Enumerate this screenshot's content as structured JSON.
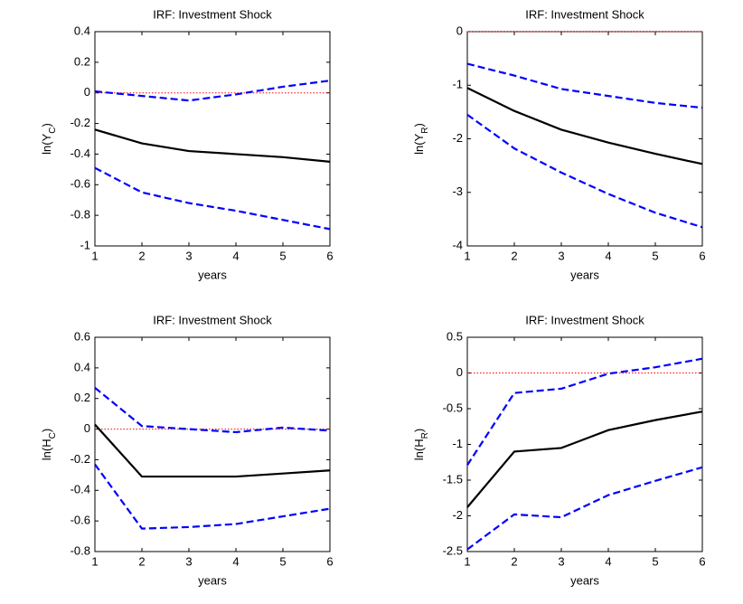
{
  "chart_data": [
    {
      "type": "line",
      "title": "IRF:  Investment Shock",
      "xlabel": "years",
      "ylabel": [
        "ln(Y",
        "C",
        ")"
      ],
      "x": [
        1,
        2,
        3,
        4,
        5,
        6
      ],
      "xlim": [
        1,
        6
      ],
      "xticks": [
        1,
        2,
        3,
        4,
        5,
        6
      ],
      "ylim": [
        -1,
        0.4
      ],
      "yticks": [
        -1,
        -0.8,
        -0.6,
        -0.4,
        -0.2,
        0,
        0.2,
        0.4
      ],
      "hline": 0,
      "hline_color": "#ff0000",
      "series": [
        {
          "color": "#000000",
          "dash": false,
          "values": [
            -0.24,
            -0.33,
            -0.38,
            -0.4,
            -0.42,
            -0.45
          ]
        },
        {
          "color": "#0000ff",
          "dash": true,
          "values": [
            0.01,
            -0.02,
            -0.05,
            -0.01,
            0.04,
            0.08
          ]
        },
        {
          "color": "#0000ff",
          "dash": true,
          "values": [
            -0.49,
            -0.65,
            -0.72,
            -0.77,
            -0.83,
            -0.89
          ]
        }
      ]
    },
    {
      "type": "line",
      "title": "IRF:  Investment Shock",
      "xlabel": "years",
      "ylabel": [
        "ln(Y",
        "R",
        ")"
      ],
      "x": [
        1,
        2,
        3,
        4,
        5,
        6
      ],
      "xlim": [
        1,
        6
      ],
      "xticks": [
        1,
        2,
        3,
        4,
        5,
        6
      ],
      "ylim": [
        -4,
        0
      ],
      "yticks": [
        -4,
        -3,
        -2,
        -1,
        0
      ],
      "hline": 0,
      "hline_color": "#ff0000",
      "series": [
        {
          "color": "#000000",
          "dash": false,
          "values": [
            -1.05,
            -1.48,
            -1.83,
            -2.07,
            -2.28,
            -2.47
          ]
        },
        {
          "color": "#0000ff",
          "dash": true,
          "values": [
            -0.6,
            -0.82,
            -1.07,
            -1.2,
            -1.33,
            -1.42
          ]
        },
        {
          "color": "#0000ff",
          "dash": true,
          "values": [
            -1.55,
            -2.18,
            -2.63,
            -3.03,
            -3.38,
            -3.65
          ]
        }
      ]
    },
    {
      "type": "line",
      "title": "IRF:  Investment Shock",
      "xlabel": "years",
      "ylabel": [
        "ln(H",
        "C",
        ")"
      ],
      "x": [
        1,
        2,
        3,
        4,
        5,
        6
      ],
      "xlim": [
        1,
        6
      ],
      "xticks": [
        1,
        2,
        3,
        4,
        5,
        6
      ],
      "ylim": [
        -0.8,
        0.6
      ],
      "yticks": [
        -0.8,
        -0.6,
        -0.4,
        -0.2,
        0,
        0.2,
        0.4,
        0.6
      ],
      "hline": 0,
      "hline_color": "#ff0000",
      "series": [
        {
          "color": "#000000",
          "dash": false,
          "values": [
            0.03,
            -0.31,
            -0.31,
            -0.31,
            -0.29,
            -0.27
          ]
        },
        {
          "color": "#0000ff",
          "dash": true,
          "values": [
            0.27,
            0.02,
            0.0,
            -0.02,
            0.01,
            -0.01
          ]
        },
        {
          "color": "#0000ff",
          "dash": true,
          "values": [
            -0.23,
            -0.65,
            -0.64,
            -0.62,
            -0.57,
            -0.52
          ]
        }
      ]
    },
    {
      "type": "line",
      "title": "IRF:  Investment Shock",
      "xlabel": "years",
      "ylabel": [
        "ln(H",
        "R",
        ")"
      ],
      "x": [
        1,
        2,
        3,
        4,
        5,
        6
      ],
      "xlim": [
        1,
        6
      ],
      "xticks": [
        1,
        2,
        3,
        4,
        5,
        6
      ],
      "ylim": [
        -2.5,
        0.5
      ],
      "yticks": [
        -2.5,
        -2,
        -1.5,
        -1,
        -0.5,
        0,
        0.5
      ],
      "hline": 0,
      "hline_color": "#ff0000",
      "series": [
        {
          "color": "#000000",
          "dash": false,
          "values": [
            -1.88,
            -1.1,
            -1.05,
            -0.8,
            -0.66,
            -0.54
          ]
        },
        {
          "color": "#0000ff",
          "dash": true,
          "values": [
            -1.29,
            -0.28,
            -0.22,
            -0.01,
            0.08,
            0.2
          ]
        },
        {
          "color": "#0000ff",
          "dash": true,
          "values": [
            -2.47,
            -1.98,
            -2.02,
            -1.71,
            -1.51,
            -1.32
          ]
        }
      ]
    }
  ]
}
